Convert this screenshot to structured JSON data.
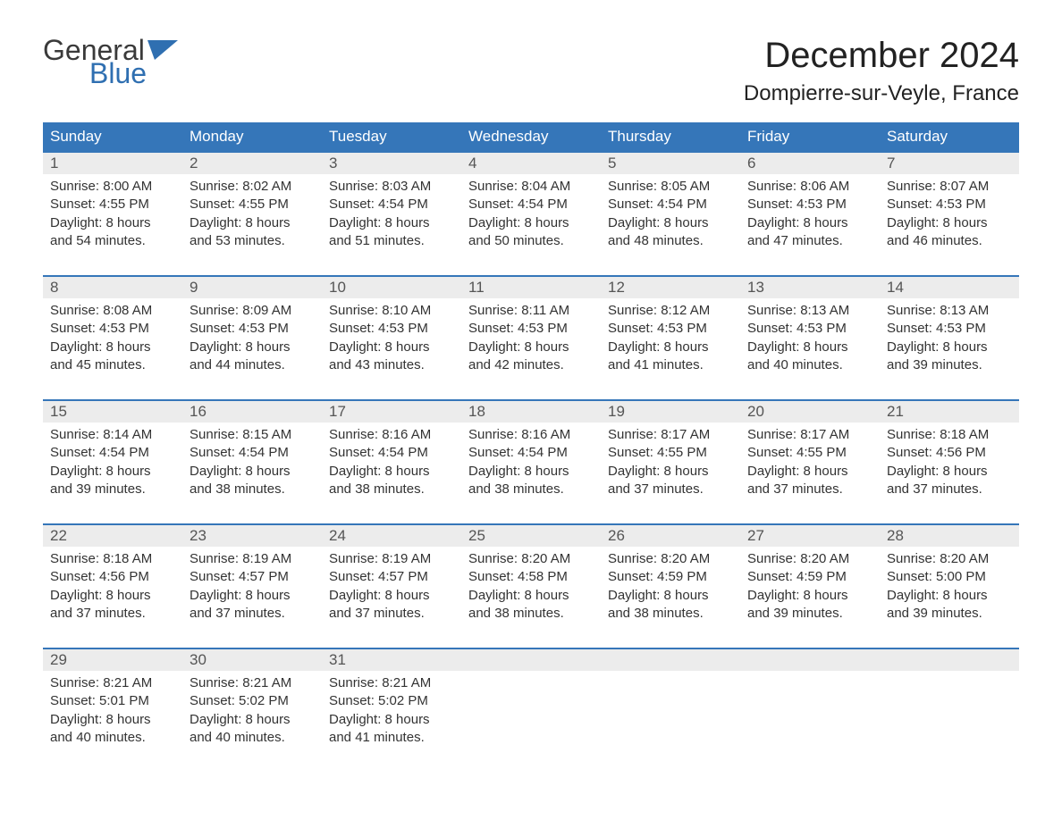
{
  "brand": {
    "word1": "General",
    "word2": "Blue",
    "word1_color": "#3a3a3a",
    "word2_color": "#2f6fb1",
    "flag_color": "#2f6fb1"
  },
  "title": "December 2024",
  "location": "Dompierre-sur-Veyle, France",
  "colors": {
    "header_bg": "#3576b9",
    "header_text": "#ffffff",
    "daynum_bg": "#ececec",
    "daynum_text": "#555555",
    "body_text": "#333333",
    "week_border": "#3576b9",
    "page_bg": "#ffffff"
  },
  "fonts": {
    "title_size_pt": 30,
    "location_size_pt": 18,
    "header_size_pt": 13,
    "daynum_size_pt": 13,
    "body_size_pt": 11
  },
  "day_headers": [
    "Sunday",
    "Monday",
    "Tuesday",
    "Wednesday",
    "Thursday",
    "Friday",
    "Saturday"
  ],
  "weeks": [
    [
      {
        "n": "1",
        "sunrise": "Sunrise: 8:00 AM",
        "sunset": "Sunset: 4:55 PM",
        "d1": "Daylight: 8 hours",
        "d2": "and 54 minutes."
      },
      {
        "n": "2",
        "sunrise": "Sunrise: 8:02 AM",
        "sunset": "Sunset: 4:55 PM",
        "d1": "Daylight: 8 hours",
        "d2": "and 53 minutes."
      },
      {
        "n": "3",
        "sunrise": "Sunrise: 8:03 AM",
        "sunset": "Sunset: 4:54 PM",
        "d1": "Daylight: 8 hours",
        "d2": "and 51 minutes."
      },
      {
        "n": "4",
        "sunrise": "Sunrise: 8:04 AM",
        "sunset": "Sunset: 4:54 PM",
        "d1": "Daylight: 8 hours",
        "d2": "and 50 minutes."
      },
      {
        "n": "5",
        "sunrise": "Sunrise: 8:05 AM",
        "sunset": "Sunset: 4:54 PM",
        "d1": "Daylight: 8 hours",
        "d2": "and 48 minutes."
      },
      {
        "n": "6",
        "sunrise": "Sunrise: 8:06 AM",
        "sunset": "Sunset: 4:53 PM",
        "d1": "Daylight: 8 hours",
        "d2": "and 47 minutes."
      },
      {
        "n": "7",
        "sunrise": "Sunrise: 8:07 AM",
        "sunset": "Sunset: 4:53 PM",
        "d1": "Daylight: 8 hours",
        "d2": "and 46 minutes."
      }
    ],
    [
      {
        "n": "8",
        "sunrise": "Sunrise: 8:08 AM",
        "sunset": "Sunset: 4:53 PM",
        "d1": "Daylight: 8 hours",
        "d2": "and 45 minutes."
      },
      {
        "n": "9",
        "sunrise": "Sunrise: 8:09 AM",
        "sunset": "Sunset: 4:53 PM",
        "d1": "Daylight: 8 hours",
        "d2": "and 44 minutes."
      },
      {
        "n": "10",
        "sunrise": "Sunrise: 8:10 AM",
        "sunset": "Sunset: 4:53 PM",
        "d1": "Daylight: 8 hours",
        "d2": "and 43 minutes."
      },
      {
        "n": "11",
        "sunrise": "Sunrise: 8:11 AM",
        "sunset": "Sunset: 4:53 PM",
        "d1": "Daylight: 8 hours",
        "d2": "and 42 minutes."
      },
      {
        "n": "12",
        "sunrise": "Sunrise: 8:12 AM",
        "sunset": "Sunset: 4:53 PM",
        "d1": "Daylight: 8 hours",
        "d2": "and 41 minutes."
      },
      {
        "n": "13",
        "sunrise": "Sunrise: 8:13 AM",
        "sunset": "Sunset: 4:53 PM",
        "d1": "Daylight: 8 hours",
        "d2": "and 40 minutes."
      },
      {
        "n": "14",
        "sunrise": "Sunrise: 8:13 AM",
        "sunset": "Sunset: 4:53 PM",
        "d1": "Daylight: 8 hours",
        "d2": "and 39 minutes."
      }
    ],
    [
      {
        "n": "15",
        "sunrise": "Sunrise: 8:14 AM",
        "sunset": "Sunset: 4:54 PM",
        "d1": "Daylight: 8 hours",
        "d2": "and 39 minutes."
      },
      {
        "n": "16",
        "sunrise": "Sunrise: 8:15 AM",
        "sunset": "Sunset: 4:54 PM",
        "d1": "Daylight: 8 hours",
        "d2": "and 38 minutes."
      },
      {
        "n": "17",
        "sunrise": "Sunrise: 8:16 AM",
        "sunset": "Sunset: 4:54 PM",
        "d1": "Daylight: 8 hours",
        "d2": "and 38 minutes."
      },
      {
        "n": "18",
        "sunrise": "Sunrise: 8:16 AM",
        "sunset": "Sunset: 4:54 PM",
        "d1": "Daylight: 8 hours",
        "d2": "and 38 minutes."
      },
      {
        "n": "19",
        "sunrise": "Sunrise: 8:17 AM",
        "sunset": "Sunset: 4:55 PM",
        "d1": "Daylight: 8 hours",
        "d2": "and 37 minutes."
      },
      {
        "n": "20",
        "sunrise": "Sunrise: 8:17 AM",
        "sunset": "Sunset: 4:55 PM",
        "d1": "Daylight: 8 hours",
        "d2": "and 37 minutes."
      },
      {
        "n": "21",
        "sunrise": "Sunrise: 8:18 AM",
        "sunset": "Sunset: 4:56 PM",
        "d1": "Daylight: 8 hours",
        "d2": "and 37 minutes."
      }
    ],
    [
      {
        "n": "22",
        "sunrise": "Sunrise: 8:18 AM",
        "sunset": "Sunset: 4:56 PM",
        "d1": "Daylight: 8 hours",
        "d2": "and 37 minutes."
      },
      {
        "n": "23",
        "sunrise": "Sunrise: 8:19 AM",
        "sunset": "Sunset: 4:57 PM",
        "d1": "Daylight: 8 hours",
        "d2": "and 37 minutes."
      },
      {
        "n": "24",
        "sunrise": "Sunrise: 8:19 AM",
        "sunset": "Sunset: 4:57 PM",
        "d1": "Daylight: 8 hours",
        "d2": "and 37 minutes."
      },
      {
        "n": "25",
        "sunrise": "Sunrise: 8:20 AM",
        "sunset": "Sunset: 4:58 PM",
        "d1": "Daylight: 8 hours",
        "d2": "and 38 minutes."
      },
      {
        "n": "26",
        "sunrise": "Sunrise: 8:20 AM",
        "sunset": "Sunset: 4:59 PM",
        "d1": "Daylight: 8 hours",
        "d2": "and 38 minutes."
      },
      {
        "n": "27",
        "sunrise": "Sunrise: 8:20 AM",
        "sunset": "Sunset: 4:59 PM",
        "d1": "Daylight: 8 hours",
        "d2": "and 39 minutes."
      },
      {
        "n": "28",
        "sunrise": "Sunrise: 8:20 AM",
        "sunset": "Sunset: 5:00 PM",
        "d1": "Daylight: 8 hours",
        "d2": "and 39 minutes."
      }
    ],
    [
      {
        "n": "29",
        "sunrise": "Sunrise: 8:21 AM",
        "sunset": "Sunset: 5:01 PM",
        "d1": "Daylight: 8 hours",
        "d2": "and 40 minutes."
      },
      {
        "n": "30",
        "sunrise": "Sunrise: 8:21 AM",
        "sunset": "Sunset: 5:02 PM",
        "d1": "Daylight: 8 hours",
        "d2": "and 40 minutes."
      },
      {
        "n": "31",
        "sunrise": "Sunrise: 8:21 AM",
        "sunset": "Sunset: 5:02 PM",
        "d1": "Daylight: 8 hours",
        "d2": "and 41 minutes."
      },
      {
        "n": "",
        "sunrise": "",
        "sunset": "",
        "d1": "",
        "d2": ""
      },
      {
        "n": "",
        "sunrise": "",
        "sunset": "",
        "d1": "",
        "d2": ""
      },
      {
        "n": "",
        "sunrise": "",
        "sunset": "",
        "d1": "",
        "d2": ""
      },
      {
        "n": "",
        "sunrise": "",
        "sunset": "",
        "d1": "",
        "d2": ""
      }
    ]
  ]
}
